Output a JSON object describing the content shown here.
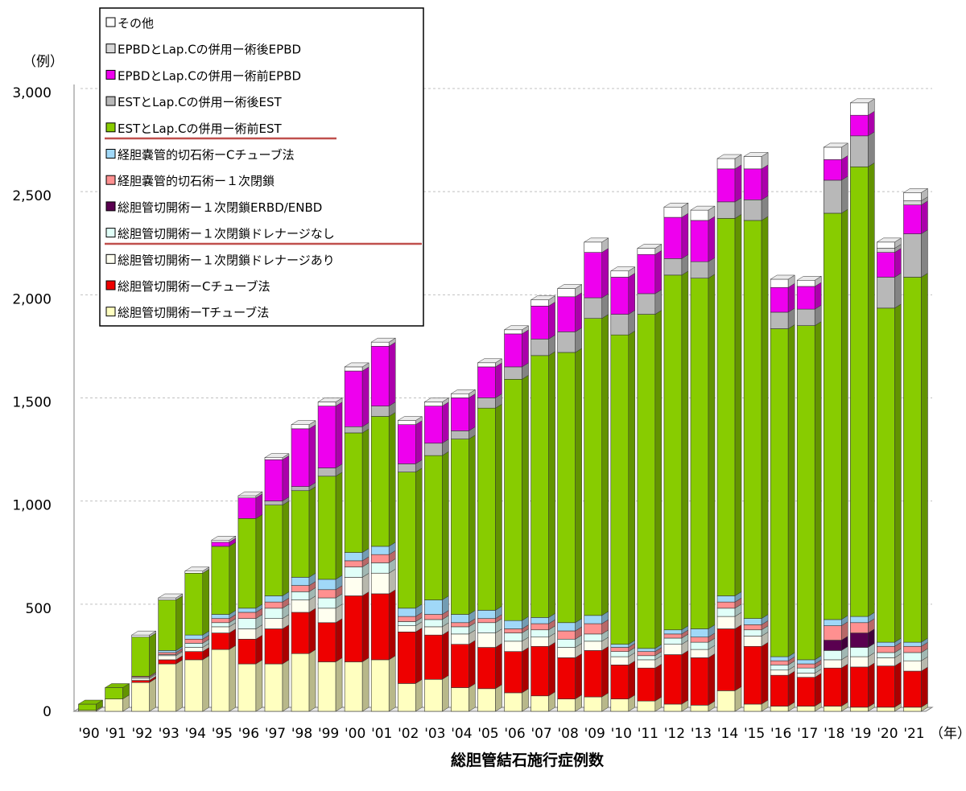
{
  "chart_data": {
    "type": "bar",
    "stacked": true,
    "title": "総胆管結石施行症例数",
    "ylabel": "（例）",
    "xlabel": "（年）",
    "ylim": [
      0,
      3000
    ],
    "yticks": [
      0,
      500,
      1000,
      1500,
      2000,
      2500,
      3000
    ],
    "ytick_labels": [
      "0",
      "500",
      "1,000",
      "1,500",
      "2,000",
      "2,500",
      "3,000"
    ],
    "grid": true,
    "legend_position": "top-left",
    "categories": [
      "'90",
      "'91",
      "'92",
      "'93",
      "'94",
      "'95",
      "'96",
      "'97",
      "'98",
      "'99",
      "'00",
      "'01",
      "'02",
      "'03",
      "'04",
      "'05",
      "'06",
      "'07",
      "'08",
      "'09",
      "'10",
      "'11",
      "'12",
      "'13",
      "'14",
      "'15",
      "'16",
      "'17",
      "'18",
      "'19",
      "'20",
      "'21"
    ],
    "series": [
      {
        "name": "総胆管切開術ーTチューブ法",
        "color": "#ffffc0",
        "values": [
          5,
          60,
          140,
          230,
          250,
          300,
          230,
          230,
          280,
          240,
          240,
          250,
          135,
          155,
          115,
          110,
          90,
          75,
          60,
          70,
          60,
          50,
          35,
          30,
          100,
          35,
          25,
          25,
          25,
          20,
          20,
          20
        ]
      },
      {
        "name": "総胆管切開術ーCチューブ法",
        "color": "#ee0000",
        "values": [
          0,
          0,
          10,
          20,
          40,
          80,
          120,
          170,
          200,
          190,
          320,
          320,
          250,
          215,
          210,
          200,
          200,
          240,
          200,
          225,
          165,
          160,
          240,
          230,
          300,
          280,
          150,
          140,
          185,
          195,
          200,
          175
        ]
      },
      {
        "name": "総胆管切開術ー１次閉鎖ドレナージあり",
        "color": "#fffff0",
        "values": [
          0,
          0,
          10,
          20,
          20,
          30,
          50,
          50,
          60,
          70,
          90,
          100,
          30,
          40,
          50,
          70,
          50,
          45,
          50,
          45,
          40,
          40,
          50,
          40,
          60,
          50,
          25,
          20,
          40,
          50,
          40,
          50
        ]
      },
      {
        "name": "総胆管切開術ー１次閉鎖ドレナージなし",
        "color": "#e0fff8",
        "values": [
          0,
          0,
          5,
          5,
          20,
          20,
          50,
          50,
          40,
          50,
          50,
          50,
          20,
          35,
          35,
          50,
          40,
          35,
          40,
          35,
          25,
          20,
          30,
          35,
          40,
          30,
          25,
          25,
          45,
          45,
          25,
          40
        ]
      },
      {
        "name": "総胆管切開術ー１次閉鎖ERBD/ENBD",
        "color": "#5a0050",
        "values": [
          0,
          0,
          0,
          0,
          0,
          0,
          0,
          0,
          0,
          0,
          0,
          0,
          0,
          0,
          0,
          0,
          0,
          0,
          0,
          0,
          0,
          0,
          0,
          0,
          0,
          0,
          0,
          0,
          50,
          70,
          0,
          0
        ]
      },
      {
        "name": "経胆嚢管的切石術ー１次閉鎖",
        "color": "#ff9090",
        "values": [
          0,
          0,
          5,
          10,
          20,
          20,
          30,
          30,
          30,
          40,
          30,
          40,
          25,
          25,
          20,
          20,
          20,
          30,
          40,
          50,
          20,
          20,
          20,
          25,
          30,
          25,
          20,
          20,
          70,
          50,
          30,
          30
        ]
      },
      {
        "name": "経胆嚢管的切石術ーCチューブ法",
        "color": "#a0d8f8",
        "values": [
          0,
          0,
          0,
          10,
          20,
          20,
          20,
          30,
          40,
          50,
          40,
          40,
          40,
          70,
          40,
          40,
          40,
          30,
          40,
          40,
          15,
          15,
          20,
          40,
          30,
          30,
          20,
          20,
          30,
          30,
          20,
          20
        ]
      },
      {
        "name": "ESTとLap.Cの併用ー術前EST",
        "color": "#88cc00",
        "values": [
          30,
          55,
          190,
          245,
          300,
          330,
          435,
          440,
          420,
          500,
          580,
          630,
          660,
          700,
          850,
          980,
          1170,
          1270,
          1310,
          1440,
          1500,
          1620,
          1720,
          1700,
          1830,
          1930,
          1590,
          1620,
          1970,
          2180,
          1620,
          1770
        ]
      },
      {
        "name": "ESTとLap.Cの併用ー術後EST",
        "color": "#b8b8b8",
        "values": [
          0,
          0,
          0,
          0,
          0,
          0,
          0,
          20,
          20,
          40,
          30,
          50,
          40,
          60,
          40,
          50,
          60,
          80,
          100,
          100,
          100,
          100,
          80,
          80,
          80,
          100,
          80,
          80,
          160,
          150,
          150,
          210
        ]
      },
      {
        "name": "EPBDとLap.Cの併用ー術前EPBD",
        "color": "#ee00ee",
        "values": [
          0,
          0,
          0,
          0,
          0,
          20,
          100,
          200,
          280,
          300,
          270,
          290,
          190,
          180,
          160,
          150,
          160,
          160,
          170,
          220,
          180,
          190,
          200,
          200,
          160,
          150,
          120,
          110,
          100,
          100,
          120,
          140
        ]
      },
      {
        "name": "EPBDとLap.Cの併用ー術後EPBD",
        "color": "#d8d8d8",
        "values": [
          0,
          0,
          0,
          0,
          0,
          0,
          0,
          0,
          0,
          0,
          0,
          0,
          0,
          0,
          0,
          0,
          0,
          0,
          0,
          0,
          0,
          0,
          0,
          0,
          0,
          0,
          0,
          0,
          0,
          0,
          20,
          20
        ]
      },
      {
        "name": "その他",
        "color": "#ffffff",
        "values": [
          0,
          0,
          10,
          10,
          10,
          10,
          10,
          10,
          20,
          20,
          20,
          20,
          20,
          20,
          20,
          20,
          20,
          30,
          40,
          50,
          30,
          30,
          50,
          50,
          50,
          60,
          40,
          30,
          60,
          60,
          30,
          40
        ]
      }
    ]
  }
}
